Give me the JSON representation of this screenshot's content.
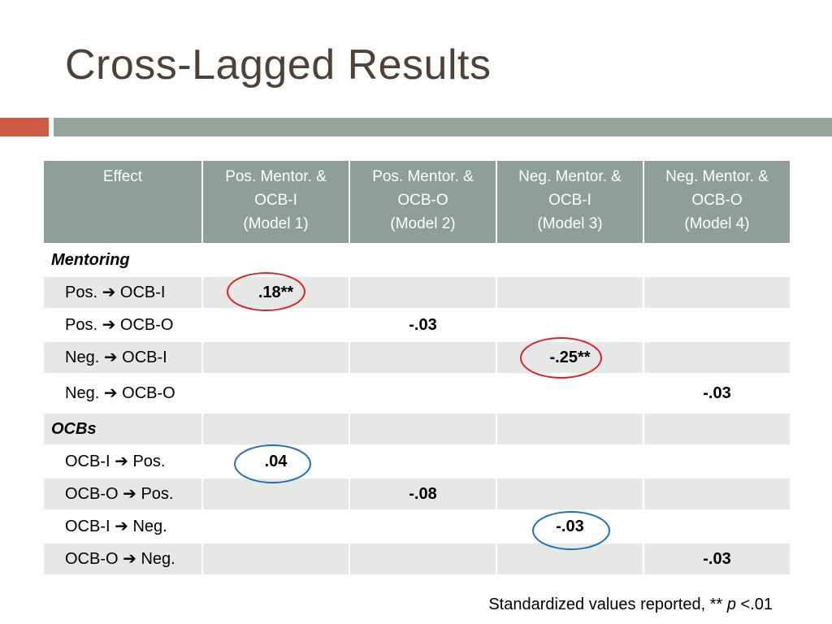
{
  "slide": {
    "title": "Cross-Lagged Results"
  },
  "colors": {
    "title_text": "#4f4137",
    "accent_bar": "#d05b45",
    "header_bar": "#96a49c",
    "table_header_bg": "#8f9e97",
    "stripe_bg": "#e6e8e6",
    "circle_significant": "#e11f26",
    "circle_nonsignificant": "#1a6fc4"
  },
  "table": {
    "headers": [
      {
        "lines": [
          "Effect"
        ]
      },
      {
        "lines": [
          "Pos. Mentor. &",
          "OCB-I",
          "(Model 1)"
        ]
      },
      {
        "lines": [
          "Pos. Mentor. &",
          "OCB-O",
          "(Model 2)"
        ]
      },
      {
        "lines": [
          "Neg. Mentor. &",
          "OCB-I",
          "(Model 3)"
        ]
      },
      {
        "lines": [
          "Neg. Mentor. &",
          "OCB-O",
          "(Model 4)"
        ]
      }
    ],
    "arrow_glyph": "➔",
    "sections": [
      {
        "title": "Mentoring",
        "rows": [
          {
            "from": "Pos.",
            "to": "OCB-I",
            "values": [
              ".18**",
              "",
              "",
              ""
            ]
          },
          {
            "from": "Pos.",
            "to": "OCB-O",
            "values": [
              "",
              "-.03",
              "",
              ""
            ]
          },
          {
            "from": "Neg.",
            "to": "OCB-I",
            "values": [
              "",
              "",
              "-.25**",
              ""
            ]
          },
          {
            "from": "Neg.",
            "to": "OCB-O",
            "values": [
              "",
              "",
              "",
              "-.03"
            ]
          }
        ]
      },
      {
        "title": "OCBs",
        "rows": [
          {
            "from": "OCB-I",
            "to": "Pos.",
            "values": [
              ".04",
              "",
              "",
              ""
            ]
          },
          {
            "from": "OCB-O",
            "to": "Pos.",
            "values": [
              "",
              "-.08",
              "",
              ""
            ]
          },
          {
            "from": "OCB-I",
            "to": "Neg.",
            "values": [
              "",
              "",
              "-.03",
              ""
            ]
          },
          {
            "from": "OCB-O",
            "to": "Neg.",
            "values": [
              "",
              "",
              "",
              "-.03"
            ]
          }
        ]
      }
    ]
  },
  "footnote": {
    "text": "Standardized values reported, ** ",
    "p_symbol": "p",
    "threshold": " <.01"
  }
}
